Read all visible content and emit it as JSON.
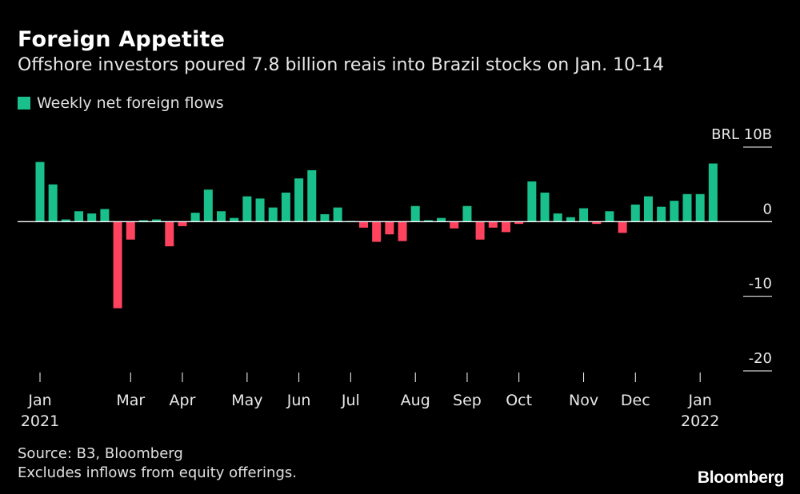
{
  "colors": {
    "positive": "#19c08c",
    "negative": "#ff435f",
    "background": "#000000",
    "axis": "#ffffff"
  },
  "chart_data": {
    "type": "bar",
    "title": "Foreign Appetite",
    "subtitle": "Offshore investors poured 7.8 billion reais into Brazil stocks on Jan. 10-14",
    "legend": [
      "Weekly net foreign flows"
    ],
    "unit_label": "BRL 10B",
    "ylim": [
      -20,
      10
    ],
    "yticks": [
      {
        "value": 10,
        "label": "BRL 10B"
      },
      {
        "value": 0,
        "label": "0"
      },
      {
        "value": -10,
        "label": "-10"
      },
      {
        "value": -20,
        "label": "-20"
      }
    ],
    "xtick_labels": [
      {
        "week": 0,
        "label": "Jan",
        "sub": "2021"
      },
      {
        "week": 7,
        "label": "Mar",
        "sub": ""
      },
      {
        "week": 11,
        "label": "Apr",
        "sub": ""
      },
      {
        "week": 16,
        "label": "May",
        "sub": ""
      },
      {
        "week": 20,
        "label": "Jun",
        "sub": ""
      },
      {
        "week": 24,
        "label": "Jul",
        "sub": ""
      },
      {
        "week": 29,
        "label": "Aug",
        "sub": ""
      },
      {
        "week": 33,
        "label": "Sep",
        "sub": ""
      },
      {
        "week": 37,
        "label": "Oct",
        "sub": ""
      },
      {
        "week": 42,
        "label": "Nov",
        "sub": ""
      },
      {
        "week": 46,
        "label": "Dec",
        "sub": ""
      },
      {
        "week": 51,
        "label": "Jan",
        "sub": "2022"
      }
    ],
    "series": [
      {
        "name": "Weekly net foreign flows",
        "values": [
          8.0,
          5.0,
          0.3,
          1.4,
          1.1,
          1.7,
          -11.6,
          -2.4,
          0.2,
          0.3,
          -3.3,
          -0.6,
          1.2,
          4.3,
          1.4,
          0.5,
          3.4,
          3.1,
          1.9,
          3.9,
          5.8,
          6.9,
          1.0,
          1.9,
          0.1,
          -0.8,
          -2.7,
          -1.7,
          -2.6,
          2.1,
          0.2,
          0.5,
          -0.9,
          2.1,
          -2.4,
          -0.8,
          -1.4,
          -0.3,
          5.4,
          3.9,
          1.1,
          0.6,
          1.8,
          -0.3,
          1.4,
          -1.5,
          2.3,
          3.4,
          2.0,
          2.8,
          3.7,
          3.7,
          7.8
        ]
      }
    ]
  },
  "footer": {
    "source": "Source: B3, Bloomberg",
    "note": "Excludes inflows from equity offerings.",
    "brand": "Bloomberg"
  }
}
